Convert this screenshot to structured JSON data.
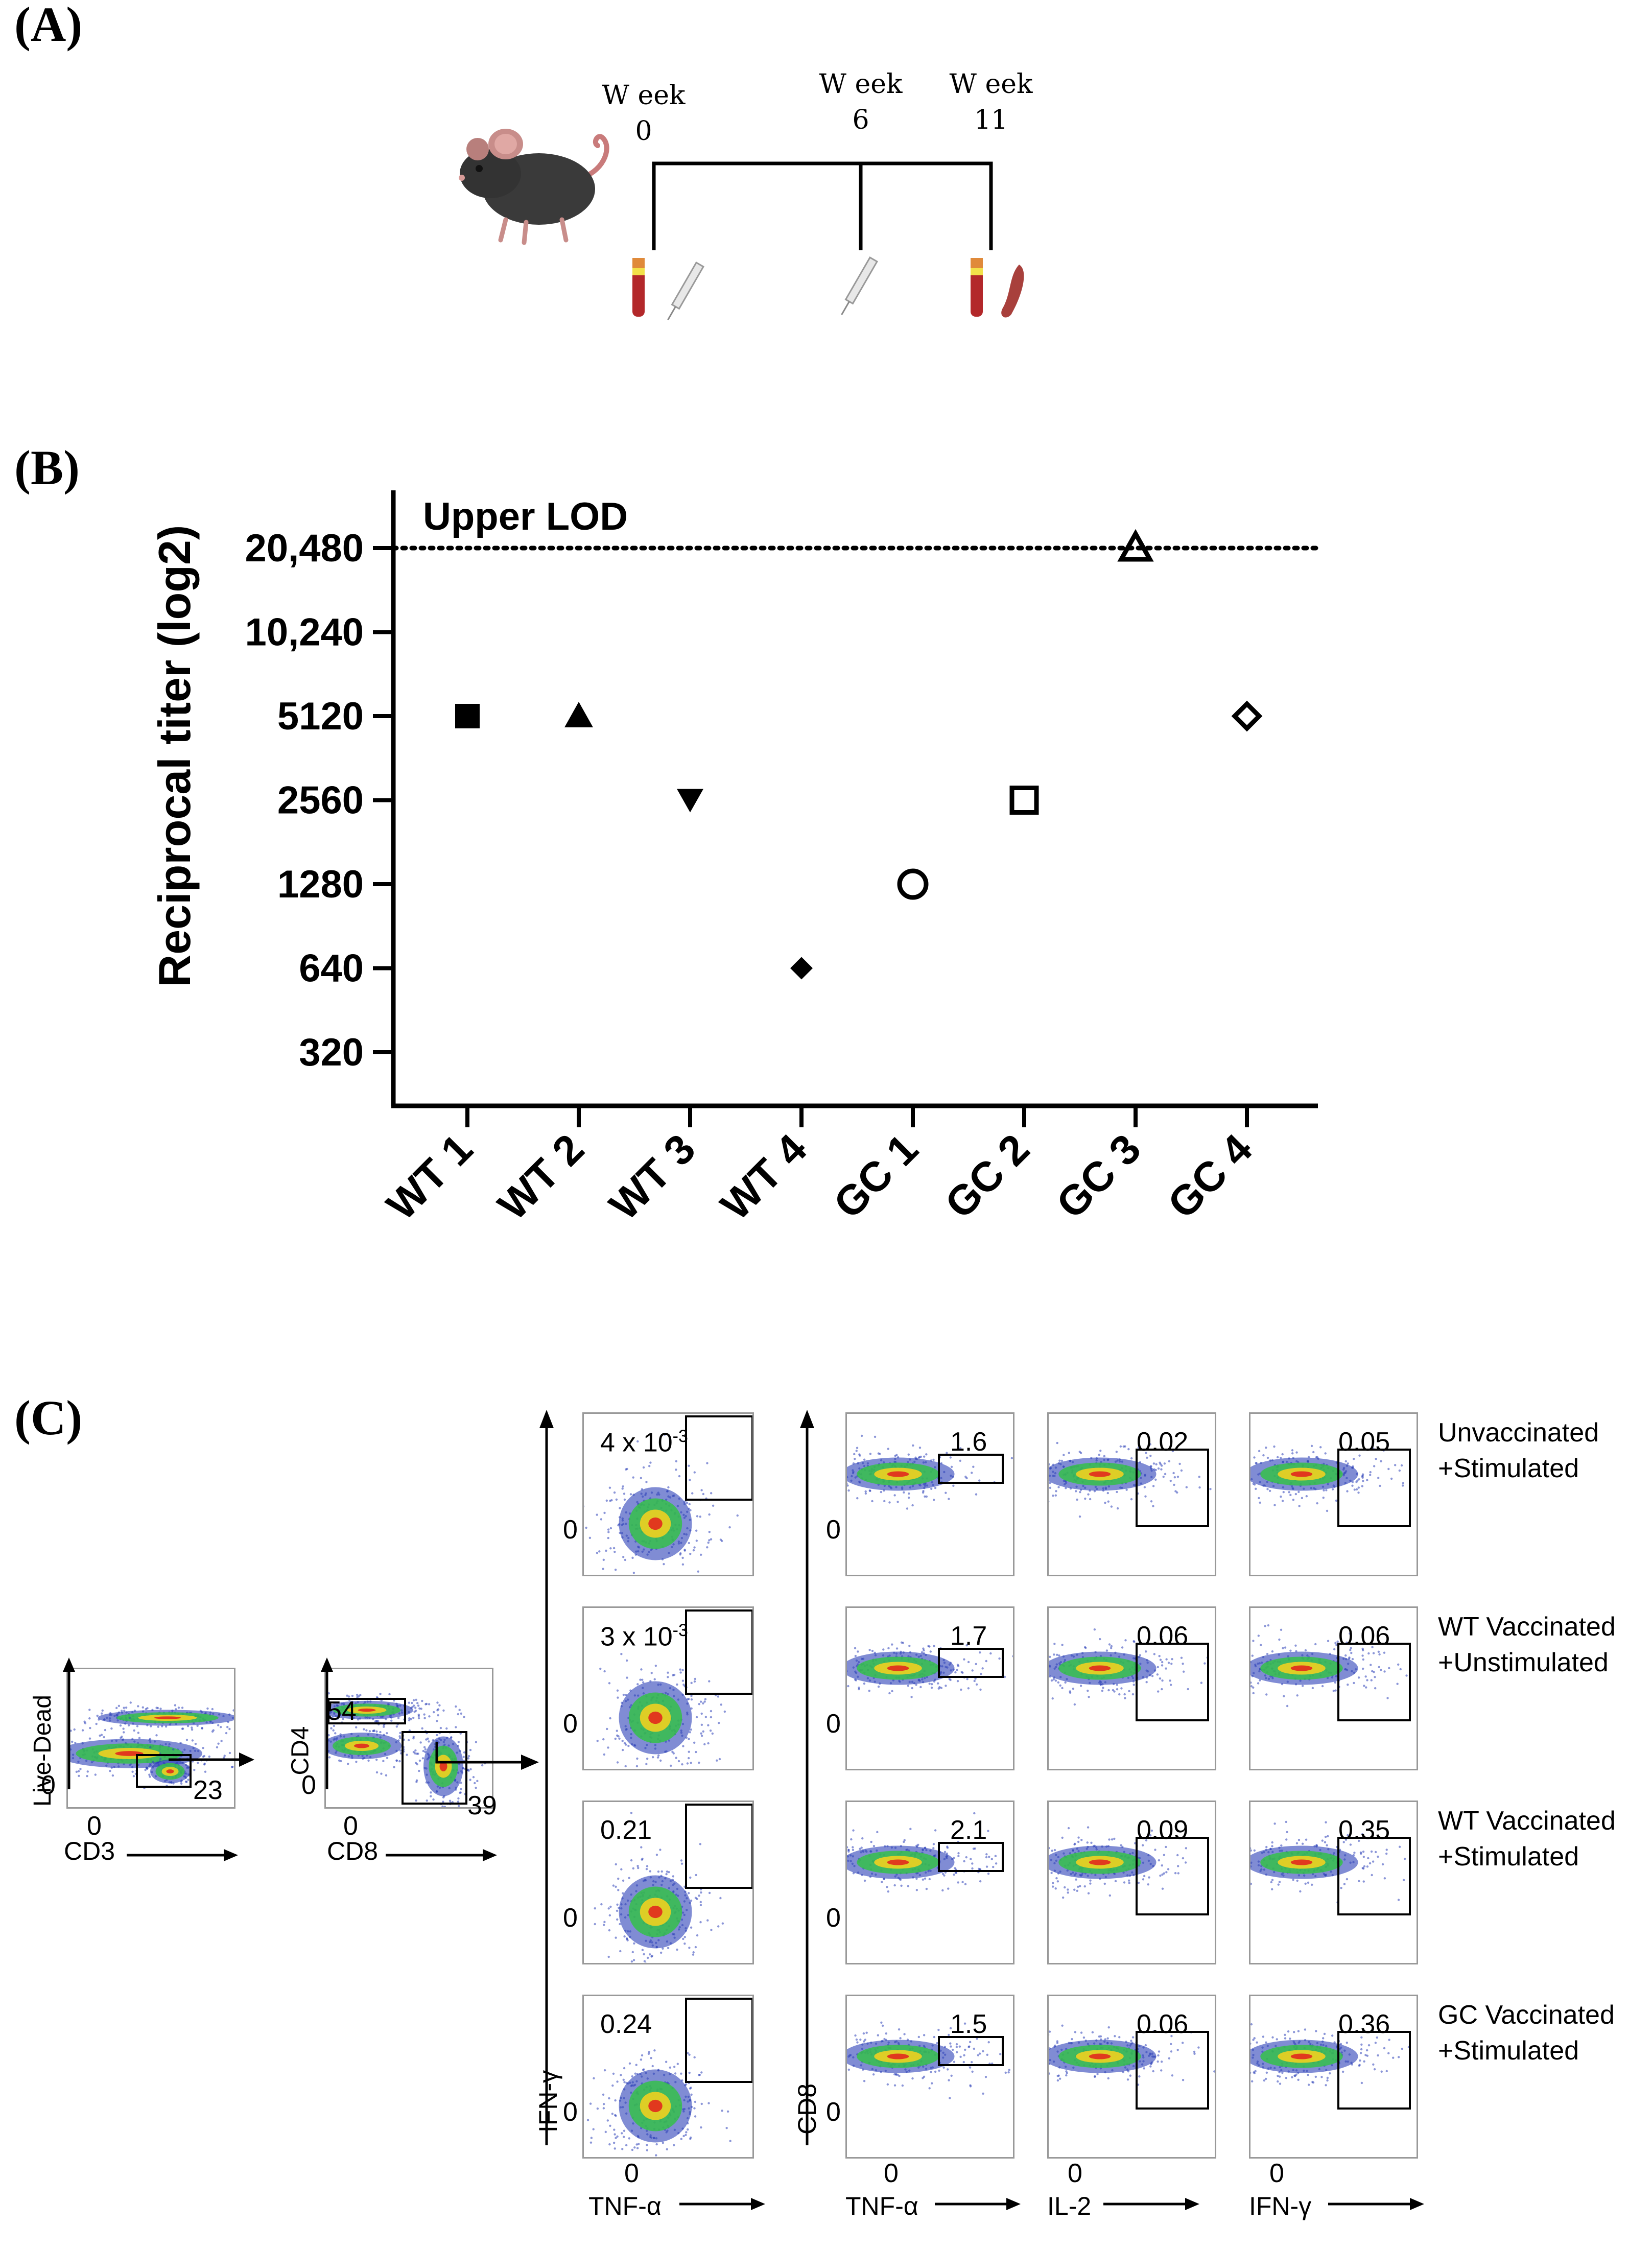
{
  "panel_labels": {
    "a": "(A)",
    "b": "(B)",
    "c": "(C)"
  },
  "timeline": {
    "points": [
      {
        "label": "W eek",
        "sub": "0"
      },
      {
        "label": "W eek",
        "sub": "6"
      },
      {
        "label": "W eek",
        "sub": "11"
      }
    ]
  },
  "chart_data": {
    "type": "scatter",
    "ylabel": "Reciprocal titer (log2)",
    "xlabel": "",
    "y_scale": "log2",
    "categories": [
      "WT 1",
      "WT 2",
      "WT 3",
      "WT 4",
      "GC 1",
      "GC 2",
      "GC 3",
      "GC 4"
    ],
    "values": [
      5120,
      5120,
      2560,
      640,
      1280,
      2560,
      20480,
      5120
    ],
    "markers": [
      "square-filled",
      "triangle-up-filled",
      "triangle-down-filled",
      "diamond-filled",
      "circle-open",
      "square-open",
      "triangle-up-open",
      "diamond-open"
    ],
    "y_ticks": [
      "320",
      "640",
      "1280",
      "2560",
      "5120",
      "10,240",
      "20,480"
    ],
    "y_tick_values": [
      320,
      640,
      1280,
      2560,
      5120,
      10240,
      20480
    ],
    "ylim": [
      250,
      28000
    ],
    "reference_line": {
      "value": 20480,
      "label": "Upper LOD",
      "style": "dotted"
    },
    "grid": false
  },
  "flow": {
    "gating": {
      "plot1": {
        "y_axis": "Live-Dead",
        "x_axis": "CD3",
        "zero_x": "0",
        "zero_y": "0",
        "gate_value": "23"
      },
      "plot2": {
        "y_axis": "CD4",
        "x_axis": "CD8",
        "zero_x": "0",
        "zero_y": "0",
        "cd4_value": "54",
        "cd8_value": "39"
      }
    },
    "cd4_column": {
      "y_axis": "IFN-γ",
      "x_axis": "TNF-α",
      "zero": "0"
    },
    "cd8_columns": {
      "y_axis": "CD8",
      "x_axes": [
        "TNF-α",
        "IL-2",
        "IFN-γ"
      ],
      "zero": "0"
    },
    "rows": [
      {
        "label1": "Unvaccinated",
        "label2": "+Stimulated",
        "cd4_val": "4 x 10",
        "cd4_exp": "-3",
        "tnf": "1.6",
        "il2": "0.02",
        "ifng": "0.05"
      },
      {
        "label1": "WT Vaccinated",
        "label2": "+Unstimulated",
        "cd4_val": "3 x 10",
        "cd4_exp": "-3",
        "tnf": "1.7",
        "il2": "0.06",
        "ifng": "0.06"
      },
      {
        "label1": "WT Vaccinated",
        "label2": "+Stimulated",
        "cd4_val": "0.21",
        "cd4_exp": "",
        "tnf": "2.1",
        "il2": "0.09",
        "ifng": "0.35"
      },
      {
        "label1": "GC Vaccinated",
        "label2": "+Stimulated",
        "cd4_val": "0.24",
        "cd4_exp": "",
        "tnf": "1.5",
        "il2": "0.06",
        "ifng": "0.36"
      }
    ]
  },
  "colors": {
    "density_low": "#2c3fb8",
    "density_mid": "#35c04a",
    "density_high": "#f0d020",
    "density_peak": "#e0301e",
    "axis": "#000000",
    "frame": "#999999"
  }
}
